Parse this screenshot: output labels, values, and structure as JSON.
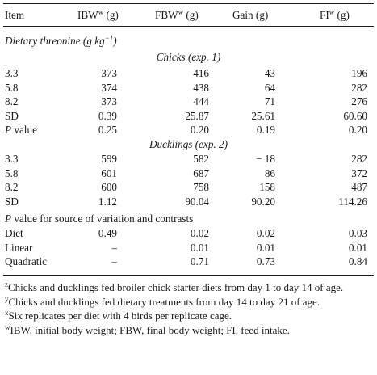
{
  "header": {
    "item": "Item",
    "ibw": "IBW",
    "fbw": "FBW",
    "gain": "Gain (g)",
    "fi": "FI",
    "mark_w": "w",
    "unit": " (g)"
  },
  "section_threonine": "Dietary threonine (g kg",
  "section_threonine_exp": "−1",
  "section_threonine_close": ")",
  "chicks_title": "Chicks (exp. 1)",
  "ducklings_title": "Ducklings (exp. 2)",
  "chicks_rows": [
    {
      "item": "3.3",
      "ibw": "373",
      "fbw": "416",
      "gain": "43",
      "fi": "196"
    },
    {
      "item": "5.8",
      "ibw": "374",
      "fbw": "438",
      "gain": "64",
      "fi": "282"
    },
    {
      "item": "8.2",
      "ibw": "373",
      "fbw": "444",
      "gain": "71",
      "fi": "276"
    },
    {
      "item": "SD",
      "ibw": "0.39",
      "fbw": "25.87",
      "gain": "25.61",
      "fi": "60.60"
    },
    {
      "item": "P value",
      "ibw": "0.25",
      "fbw": "0.20",
      "gain": "0.19",
      "fi": "0.20"
    }
  ],
  "ducklings_rows": [
    {
      "item": "3.3",
      "ibw": "599",
      "fbw": "582",
      "gain": "− 18",
      "fi": "282"
    },
    {
      "item": "5.8",
      "ibw": "601",
      "fbw": "687",
      "gain": "86",
      "fi": "372"
    },
    {
      "item": "8.2",
      "ibw": "600",
      "fbw": "758",
      "gain": "158",
      "fi": "487"
    },
    {
      "item": "SD",
      "ibw": "1.12",
      "fbw": "90.04",
      "gain": "90.20",
      "fi": "114.26"
    }
  ],
  "pvalue_section": "P value for source of variation and contrasts",
  "pvalue_rows": [
    {
      "item": "Diet",
      "ibw": "0.49",
      "fbw": "0.02",
      "gain": "0.02",
      "fi": "0.03"
    },
    {
      "item": "Linear",
      "ibw": "–",
      "fbw": "0.01",
      "gain": "0.01",
      "fi": "0.01"
    },
    {
      "item": "Quadratic",
      "ibw": "–",
      "fbw": "0.71",
      "gain": "0.73",
      "fi": "0.84"
    }
  ],
  "footnotes": [
    {
      "mark": "z",
      "text": "Chicks and ducklings fed broiler chick starter diets from day 1 to day 14 of age."
    },
    {
      "mark": "y",
      "text": "Chicks and ducklings fed dietary treatments from day 14 to day 21 of age."
    },
    {
      "mark": "x",
      "text": "Six replicates per diet with 4 birds per replicate cage."
    },
    {
      "mark": "w",
      "text": "IBW, initial body weight; FBW, final body weight; FI, feed intake."
    }
  ]
}
